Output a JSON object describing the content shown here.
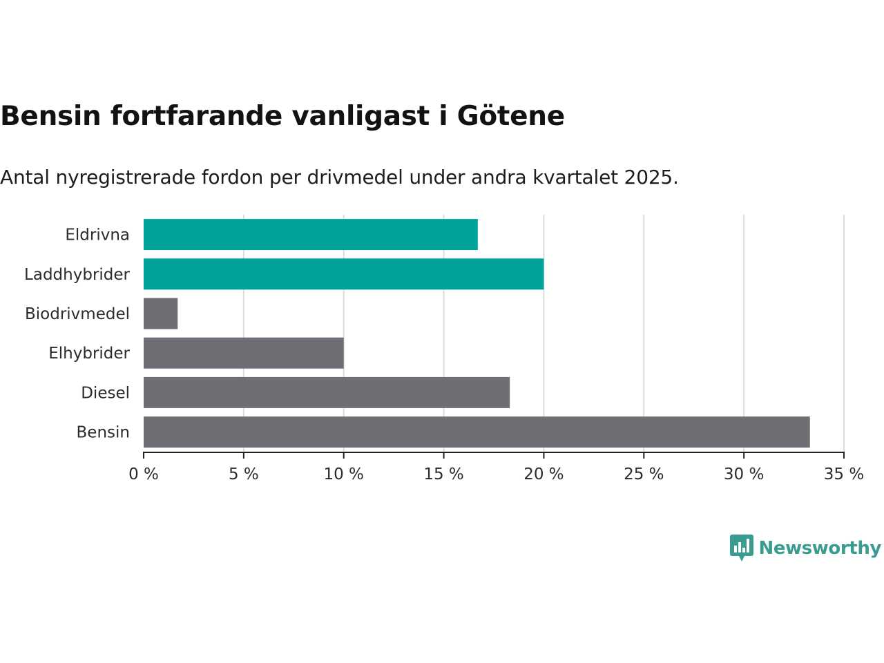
{
  "header": {
    "title": "Bensin fortfarande vanligast i Götene",
    "subtitle": "Antal nyregistrerade fordon per drivmedel under andra kvartalet 2025."
  },
  "brand": {
    "name": "Newsworthy",
    "icon": "newsworthy-logo-icon",
    "color": "#3a9c90"
  },
  "colors": {
    "highlight": "#00a39a",
    "default": "#6f6e75",
    "grid": "#dddddd",
    "axis": "#222222"
  },
  "chart_data": {
    "type": "bar",
    "orientation": "horizontal",
    "categories": [
      "Eldrivna",
      "Laddhybrider",
      "Biodrivmedel",
      "Elhybrider",
      "Diesel",
      "Bensin"
    ],
    "values": [
      16.7,
      20.0,
      1.7,
      10.0,
      18.3,
      33.3
    ],
    "highlighted": [
      true,
      true,
      false,
      false,
      false,
      false
    ],
    "xlim": [
      0,
      35
    ],
    "xticks": [
      0,
      5,
      10,
      15,
      20,
      25,
      30,
      35
    ],
    "tick_labels": [
      "0 %",
      "5 %",
      "10 %",
      "15 %",
      "20 %",
      "25 %",
      "30 %",
      "35 %"
    ],
    "grid": true,
    "legend": "none"
  }
}
